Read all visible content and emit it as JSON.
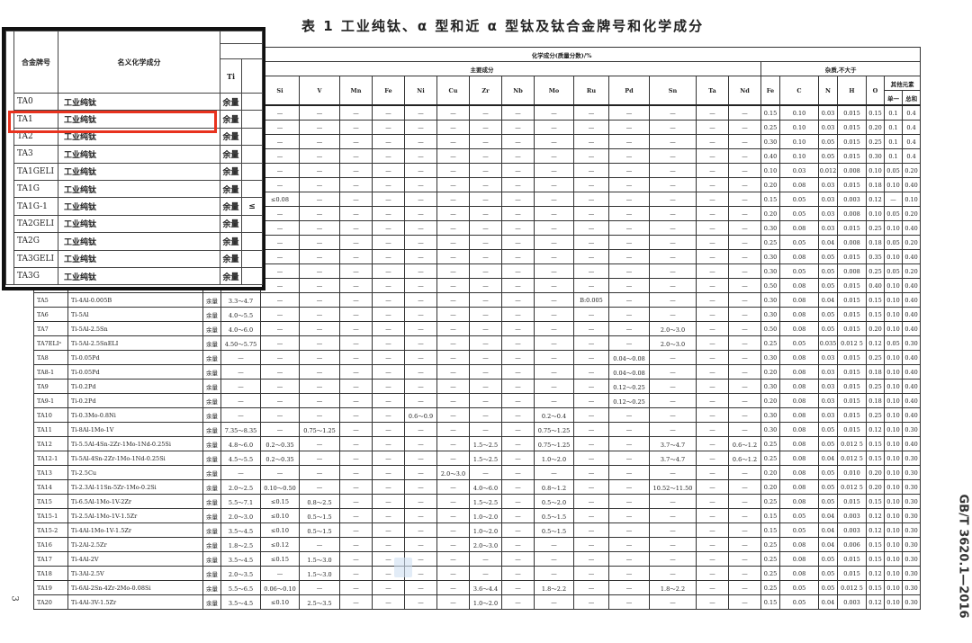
{
  "title": "表 1   工业纯钛、α 型和近 α 型钛及钛合金牌号和化学成分",
  "side_code": "GB/T 3620.1—2016",
  "page_number": "3",
  "highlight_color": "#e8321e",
  "header": {
    "grade": "合金牌号",
    "name": "名义化学成分",
    "chem": "化学成分(质量分数)/%",
    "main": "主要成分",
    "impurity": "杂质,不大于",
    "main_elements": [
      "Ti",
      "",
      "Si",
      "V",
      "Mn",
      "Fe",
      "Ni",
      "Cu",
      "Zr",
      "Nb",
      "Mo",
      "Ru",
      "Pd",
      "Sn",
      "Ta",
      "Nd"
    ],
    "impurity_elements": [
      "Fe",
      "C",
      "N",
      "H",
      "O"
    ],
    "other": "其他元素",
    "single": "单一",
    "total": "总和"
  },
  "rows": [
    [
      "",
      "",
      "",
      "",
      "—",
      "—",
      "—",
      "—",
      "—",
      "—",
      "—",
      "—",
      "—",
      "—",
      "—",
      "—",
      "—",
      "—",
      "0.15",
      "0.10",
      "0.03",
      "0.015",
      "0.15",
      "0.1",
      "0.4"
    ],
    [
      "",
      "",
      "",
      "",
      "—",
      "—",
      "—",
      "—",
      "—",
      "—",
      "—",
      "—",
      "—",
      "—",
      "—",
      "—",
      "—",
      "—",
      "0.25",
      "0.10",
      "0.03",
      "0.015",
      "0.20",
      "0.1",
      "0.4"
    ],
    [
      "",
      "",
      "",
      "",
      "—",
      "—",
      "—",
      "—",
      "—",
      "—",
      "—",
      "—",
      "—",
      "—",
      "—",
      "—",
      "—",
      "—",
      "0.30",
      "0.10",
      "0.05",
      "0.015",
      "0.25",
      "0.1",
      "0.4"
    ],
    [
      "",
      "",
      "",
      "",
      "—",
      "—",
      "—",
      "—",
      "—",
      "—",
      "—",
      "—",
      "—",
      "—",
      "—",
      "—",
      "—",
      "—",
      "0.40",
      "0.10",
      "0.05",
      "0.015",
      "0.30",
      "0.1",
      "0.4"
    ],
    [
      "",
      "",
      "",
      "",
      "—",
      "—",
      "—",
      "—",
      "—",
      "—",
      "—",
      "—",
      "—",
      "—",
      "—",
      "—",
      "—",
      "—",
      "0.10",
      "0.03",
      "0.012",
      "0.008",
      "0.10",
      "0.05",
      "0.20"
    ],
    [
      "",
      "",
      "",
      "",
      "—",
      "—",
      "—",
      "—",
      "—",
      "—",
      "—",
      "—",
      "—",
      "—",
      "—",
      "—",
      "—",
      "—",
      "0.20",
      "0.08",
      "0.03",
      "0.015",
      "0.18",
      "0.10",
      "0.40"
    ],
    [
      "",
      "",
      "",
      "",
      "≤0.08",
      "—",
      "—",
      "—",
      "—",
      "—",
      "—",
      "—",
      "—",
      "—",
      "—",
      "—",
      "—",
      "—",
      "0.15",
      "0.05",
      "0.03",
      "0.003",
      "0.12",
      "—",
      "0.10"
    ],
    [
      "",
      "",
      "",
      "",
      "—",
      "—",
      "—",
      "—",
      "—",
      "—",
      "—",
      "—",
      "—",
      "—",
      "—",
      "—",
      "—",
      "—",
      "0.20",
      "0.05",
      "0.03",
      "0.008",
      "0.10",
      "0.05",
      "0.20"
    ],
    [
      "",
      "",
      "",
      "",
      "—",
      "—",
      "—",
      "—",
      "—",
      "—",
      "—",
      "—",
      "—",
      "—",
      "—",
      "—",
      "—",
      "—",
      "0.30",
      "0.08",
      "0.03",
      "0.015",
      "0.25",
      "0.10",
      "0.40"
    ],
    [
      "",
      "",
      "",
      "",
      "—",
      "—",
      "—",
      "—",
      "—",
      "—",
      "—",
      "—",
      "—",
      "—",
      "—",
      "—",
      "—",
      "—",
      "0.25",
      "0.05",
      "0.04",
      "0.008",
      "0.18",
      "0.05",
      "0.20"
    ],
    [
      "",
      "",
      "",
      "",
      "—",
      "—",
      "—",
      "—",
      "—",
      "—",
      "—",
      "—",
      "—",
      "—",
      "—",
      "—",
      "—",
      "—",
      "0.30",
      "0.08",
      "0.05",
      "0.015",
      "0.35",
      "0.10",
      "0.40"
    ],
    [
      "",
      "",
      "",
      "",
      "—",
      "—",
      "—",
      "—",
      "—",
      "—",
      "—",
      "—",
      "—",
      "—",
      "—",
      "—",
      "—",
      "—",
      "0.30",
      "0.05",
      "0.05",
      "0.008",
      "0.25",
      "0.05",
      "0.20"
    ],
    [
      "",
      "",
      "",
      "",
      "—",
      "—",
      "—",
      "—",
      "—",
      "—",
      "—",
      "—",
      "—",
      "—",
      "—",
      "—",
      "—",
      "—",
      "0.50",
      "0.08",
      "0.05",
      "0.015",
      "0.40",
      "0.10",
      "0.40"
    ],
    [
      "TA5",
      "Ti-4Al-0.005B",
      "余量",
      "3.3～4.7",
      "—",
      "—",
      "—",
      "—",
      "—",
      "—",
      "—",
      "—",
      "—",
      "B:0.005",
      "—",
      "—",
      "—",
      "—",
      "0.30",
      "0.08",
      "0.04",
      "0.015",
      "0.15",
      "0.10",
      "0.40"
    ],
    [
      "TA6",
      "Ti-5Al",
      "余量",
      "4.0～5.5",
      "—",
      "—",
      "—",
      "—",
      "—",
      "—",
      "—",
      "—",
      "—",
      "—",
      "—",
      "—",
      "—",
      "—",
      "0.30",
      "0.08",
      "0.05",
      "0.015",
      "0.15",
      "0.10",
      "0.40"
    ],
    [
      "TA7",
      "Ti-5Al-2.5Sn",
      "余量",
      "4.0～6.0",
      "—",
      "—",
      "—",
      "—",
      "—",
      "—",
      "—",
      "—",
      "—",
      "—",
      "—",
      "2.0～3.0",
      "—",
      "—",
      "0.50",
      "0.08",
      "0.05",
      "0.015",
      "0.20",
      "0.10",
      "0.40"
    ],
    [
      "TA7ELIᵃ",
      "Ti-5Al-2.5SnELI",
      "余量",
      "4.50～5.75",
      "—",
      "—",
      "—",
      "—",
      "—",
      "—",
      "—",
      "—",
      "—",
      "—",
      "—",
      "2.0～3.0",
      "—",
      "—",
      "0.25",
      "0.05",
      "0.035",
      "0.012 5",
      "0.12",
      "0.05",
      "0.30"
    ],
    [
      "TA8",
      "Ti-0.05Pd",
      "余量",
      "—",
      "—",
      "—",
      "—",
      "—",
      "—",
      "—",
      "—",
      "—",
      "—",
      "—",
      "0.04～0.08",
      "—",
      "—",
      "—",
      "0.30",
      "0.08",
      "0.03",
      "0.015",
      "0.25",
      "0.10",
      "0.40"
    ],
    [
      "TA8-1",
      "Ti-0.05Pd",
      "余量",
      "—",
      "—",
      "—",
      "—",
      "—",
      "—",
      "—",
      "—",
      "—",
      "—",
      "—",
      "0.04～0.08",
      "—",
      "—",
      "—",
      "0.20",
      "0.08",
      "0.03",
      "0.015",
      "0.18",
      "0.10",
      "0.40"
    ],
    [
      "TA9",
      "Ti-0.2Pd",
      "余量",
      "—",
      "—",
      "—",
      "—",
      "—",
      "—",
      "—",
      "—",
      "—",
      "—",
      "—",
      "0.12～0.25",
      "—",
      "—",
      "—",
      "0.30",
      "0.08",
      "0.03",
      "0.015",
      "0.25",
      "0.10",
      "0.40"
    ],
    [
      "TA9-1",
      "Ti-0.2Pd",
      "余量",
      "—",
      "—",
      "—",
      "—",
      "—",
      "—",
      "—",
      "—",
      "—",
      "—",
      "—",
      "0.12～0.25",
      "—",
      "—",
      "—",
      "0.20",
      "0.08",
      "0.03",
      "0.015",
      "0.18",
      "0.10",
      "0.40"
    ],
    [
      "TA10",
      "Ti-0.3Mo-0.8Ni",
      "余量",
      "—",
      "—",
      "—",
      "—",
      "—",
      "0.6～0.9",
      "—",
      "—",
      "—",
      "0.2～0.4",
      "—",
      "—",
      "—",
      "—",
      "—",
      "0.30",
      "0.08",
      "0.03",
      "0.015",
      "0.25",
      "0.10",
      "0.40"
    ],
    [
      "TA11",
      "Ti-8Al-1Mo-1V",
      "余量",
      "7.35～8.35",
      "—",
      "0.75～1.25",
      "—",
      "—",
      "—",
      "—",
      "—",
      "—",
      "0.75～1.25",
      "—",
      "—",
      "—",
      "—",
      "—",
      "0.30",
      "0.08",
      "0.05",
      "0.015",
      "0.12",
      "0.10",
      "0.30"
    ],
    [
      "TA12",
      "Ti-5.5Al-4Sn-2Zr-1Mo-1Nd-0.25Si",
      "余量",
      "4.8～6.0",
      "0.2～0.35",
      "—",
      "—",
      "—",
      "—",
      "—",
      "1.5～2.5",
      "—",
      "0.75～1.25",
      "—",
      "—",
      "3.7～4.7",
      "—",
      "0.6～1.2",
      "0.25",
      "0.08",
      "0.05",
      "0.012 5",
      "0.15",
      "0.10",
      "0.40"
    ],
    [
      "TA12-1",
      "Ti-5Al-4Sn-2Zr-1Mo-1Nd-0.25Si",
      "余量",
      "4.5～5.5",
      "0.2～0.35",
      "—",
      "—",
      "—",
      "—",
      "—",
      "1.5～2.5",
      "—",
      "1.0～2.0",
      "—",
      "—",
      "3.7～4.7",
      "—",
      "0.6～1.2",
      "0.25",
      "0.08",
      "0.04",
      "0.012 5",
      "0.15",
      "0.10",
      "0.30"
    ],
    [
      "TA13",
      "Ti-2.5Cu",
      "余量",
      "—",
      "—",
      "—",
      "—",
      "—",
      "—",
      "2.0～3.0",
      "—",
      "—",
      "—",
      "—",
      "—",
      "—",
      "—",
      "—",
      "0.20",
      "0.08",
      "0.05",
      "0.010",
      "0.20",
      "0.10",
      "0.30"
    ],
    [
      "TA14",
      "Ti-2.3Al-11Sn-5Zr-1Mo-0.2Si",
      "余量",
      "2.0～2.5",
      "0.10～0.50",
      "—",
      "—",
      "—",
      "—",
      "—",
      "4.0～6.0",
      "—",
      "0.8～1.2",
      "—",
      "—",
      "10.52～11.50",
      "—",
      "—",
      "0.20",
      "0.08",
      "0.05",
      "0.012 5",
      "0.20",
      "0.10",
      "0.30"
    ],
    [
      "TA15",
      "Ti-6.5Al-1Mo-1V-2Zr",
      "余量",
      "5.5～7.1",
      "≤0.15",
      "0.8～2.5",
      "—",
      "—",
      "—",
      "—",
      "1.5～2.5",
      "—",
      "0.5～2.0",
      "—",
      "—",
      "—",
      "—",
      "—",
      "0.25",
      "0.08",
      "0.05",
      "0.015",
      "0.15",
      "0.10",
      "0.30"
    ],
    [
      "TA15-1",
      "Ti-2.5Al-1Mo-1V-1.5Zr",
      "余量",
      "2.0～3.0",
      "≤0.10",
      "0.5～1.5",
      "—",
      "—",
      "—",
      "—",
      "1.0～2.0",
      "—",
      "0.5～1.5",
      "—",
      "—",
      "—",
      "—",
      "—",
      "0.15",
      "0.05",
      "0.04",
      "0.003",
      "0.12",
      "0.10",
      "0.30"
    ],
    [
      "TA15-2",
      "Ti-4Al-1Mo-1V-1.5Zr",
      "余量",
      "3.5～4.5",
      "≤0.10",
      "0.5～1.5",
      "—",
      "—",
      "—",
      "—",
      "1.0～2.0",
      "—",
      "0.5～1.5",
      "—",
      "—",
      "—",
      "—",
      "—",
      "0.15",
      "0.05",
      "0.04",
      "0.003",
      "0.12",
      "0.10",
      "0.30"
    ],
    [
      "TA16",
      "Ti-2Al-2.5Zr",
      "余量",
      "1.8～2.5",
      "≤0.12",
      "—",
      "—",
      "—",
      "—",
      "—",
      "2.0～3.0",
      "—",
      "—",
      "—",
      "—",
      "—",
      "—",
      "—",
      "0.25",
      "0.08",
      "0.04",
      "0.006",
      "0.15",
      "0.10",
      "0.30"
    ],
    [
      "TA17",
      "Ti-4Al-2V",
      "余量",
      "3.5～4.5",
      "≤0.15",
      "1.5～3.0",
      "—",
      "—",
      "—",
      "—",
      "—",
      "—",
      "—",
      "—",
      "—",
      "—",
      "—",
      "—",
      "0.25",
      "0.08",
      "0.05",
      "0.015",
      "0.15",
      "0.10",
      "0.30"
    ],
    [
      "TA18",
      "Ti-3Al-2.5V",
      "余量",
      "2.0～3.5",
      "—",
      "1.5～3.0",
      "—",
      "—",
      "—",
      "—",
      "—",
      "—",
      "—",
      "—",
      "—",
      "—",
      "—",
      "—",
      "0.25",
      "0.08",
      "0.05",
      "0.015",
      "0.12",
      "0.10",
      "0.30"
    ],
    [
      "TA19",
      "Ti-6Al-2Sn-4Zr-2Mo-0.08Si",
      "余量",
      "5.5～6.5",
      "0.06～0.10",
      "—",
      "—",
      "—",
      "—",
      "—",
      "3.6～4.4",
      "—",
      "1.8～2.2",
      "—",
      "—",
      "1.8～2.2",
      "—",
      "—",
      "0.25",
      "0.05",
      "0.05",
      "0.012 5",
      "0.15",
      "0.10",
      "0.30"
    ],
    [
      "TA20",
      "Ti-4Al-3V-1.5Zr",
      "余量",
      "3.5～4.5",
      "≤0.10",
      "2.5～3.5",
      "—",
      "—",
      "—",
      "—",
      "1.0～2.0",
      "—",
      "—",
      "—",
      "—",
      "—",
      "—",
      "—",
      "0.15",
      "0.05",
      "0.04",
      "0.003",
      "0.12",
      "0.10",
      "0.30"
    ]
  ],
  "zoom_overlay": {
    "header_grade": "合金牌号",
    "header_name": "名义化学成分",
    "header_ti": "Ti",
    "rows": [
      {
        "grade": "TA0",
        "name": "工业纯钛",
        "ti": "余量",
        "extra": ""
      },
      {
        "grade": "TA1",
        "name": "工业纯钛",
        "ti": "余量",
        "extra": ""
      },
      {
        "grade": "TA2",
        "name": "工业纯钛",
        "ti": "余量",
        "extra": ""
      },
      {
        "grade": "TA3",
        "name": "工业纯钛",
        "ti": "余量",
        "extra": ""
      },
      {
        "grade": "TA1GELI",
        "name": "工业纯钛",
        "ti": "余量",
        "extra": ""
      },
      {
        "grade": "TA1G",
        "name": "工业纯钛",
        "ti": "余量",
        "extra": ""
      },
      {
        "grade": "TA1G-1",
        "name": "工业纯钛",
        "ti": "余量",
        "extra": "≤"
      },
      {
        "grade": "TA2GELI",
        "name": "工业纯钛",
        "ti": "余量",
        "extra": ""
      },
      {
        "grade": "TA2G",
        "name": "工业纯钛",
        "ti": "余量",
        "extra": ""
      },
      {
        "grade": "TA3GELI",
        "name": "工业纯钛",
        "ti": "余量",
        "extra": ""
      },
      {
        "grade": "TA3G",
        "name": "工业纯钛",
        "ti": "余量",
        "extra": ""
      }
    ],
    "highlighted_grade": "TA1"
  }
}
